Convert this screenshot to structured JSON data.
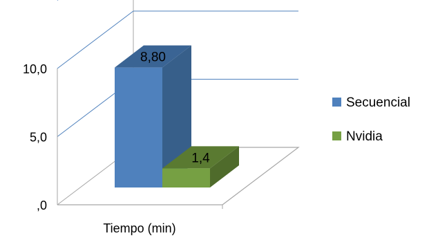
{
  "chart_data": {
    "type": "bar",
    "categories": [
      "Tiempo (min)"
    ],
    "series": [
      {
        "name": "Secuencial",
        "values": [
          8.8
        ],
        "value_label": "8,80",
        "color": "#4f81bd",
        "side_color": "#375f8a",
        "top_color": "#3a6494"
      },
      {
        "name": "Nvidia",
        "values": [
          1.4
        ],
        "value_label": "1,4",
        "color": "#76a043",
        "side_color": "#4f6b2b",
        "top_color": "#5a7a31"
      }
    ],
    "y_ticks": [
      {
        "value": 0,
        "label": ",0"
      },
      {
        "value": 5,
        "label": "5,0"
      },
      {
        "value": 10,
        "label": "10,0"
      }
    ],
    "ylim": [
      0,
      15
    ],
    "grid": true,
    "gridline_color": "#4f81bd",
    "legend_position": "right",
    "style": "3d-bar"
  }
}
